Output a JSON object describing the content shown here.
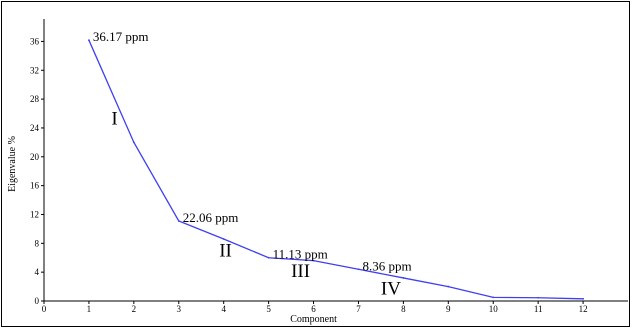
{
  "chart_data": {
    "type": "line",
    "xlabel": "Component",
    "ylabel": "Eigenvalue %",
    "xlim": [
      0,
      13
    ],
    "ylim": [
      0,
      38
    ],
    "x_ticks": [
      0,
      1,
      2,
      3,
      4,
      5,
      6,
      7,
      8,
      9,
      10,
      11,
      12
    ],
    "y_ticks": [
      0,
      4,
      8,
      12,
      16,
      20,
      24,
      28,
      32,
      36
    ],
    "grid": false,
    "line_color": "#3f3ff2",
    "series": [
      {
        "x": [
          1,
          2,
          3,
          4,
          5,
          6,
          7,
          8,
          9,
          10,
          11,
          12
        ],
        "y": [
          36.17,
          22.0,
          11.1,
          8.6,
          6.0,
          5.6,
          4.4,
          3.2,
          2.0,
          0.5,
          0.45,
          0.3
        ]
      }
    ],
    "point_annotations": [
      {
        "text": "36.17 ppm",
        "x": 1,
        "y": 36.17
      },
      {
        "text": "22.06 ppm",
        "x": 3,
        "y": 11.1
      },
      {
        "text": "11.13 ppm",
        "x": 5,
        "y": 6.0
      },
      {
        "text": "8.36 ppm",
        "x": 7,
        "y": 4.4
      }
    ],
    "region_labels": [
      {
        "text": "I",
        "x": 1.5,
        "y": 24.5
      },
      {
        "text": "II",
        "x": 3.9,
        "y": 6.2
      },
      {
        "text": "III",
        "x": 5.5,
        "y": 3.3
      },
      {
        "text": "IV",
        "x": 7.5,
        "y": 0.9
      }
    ]
  }
}
